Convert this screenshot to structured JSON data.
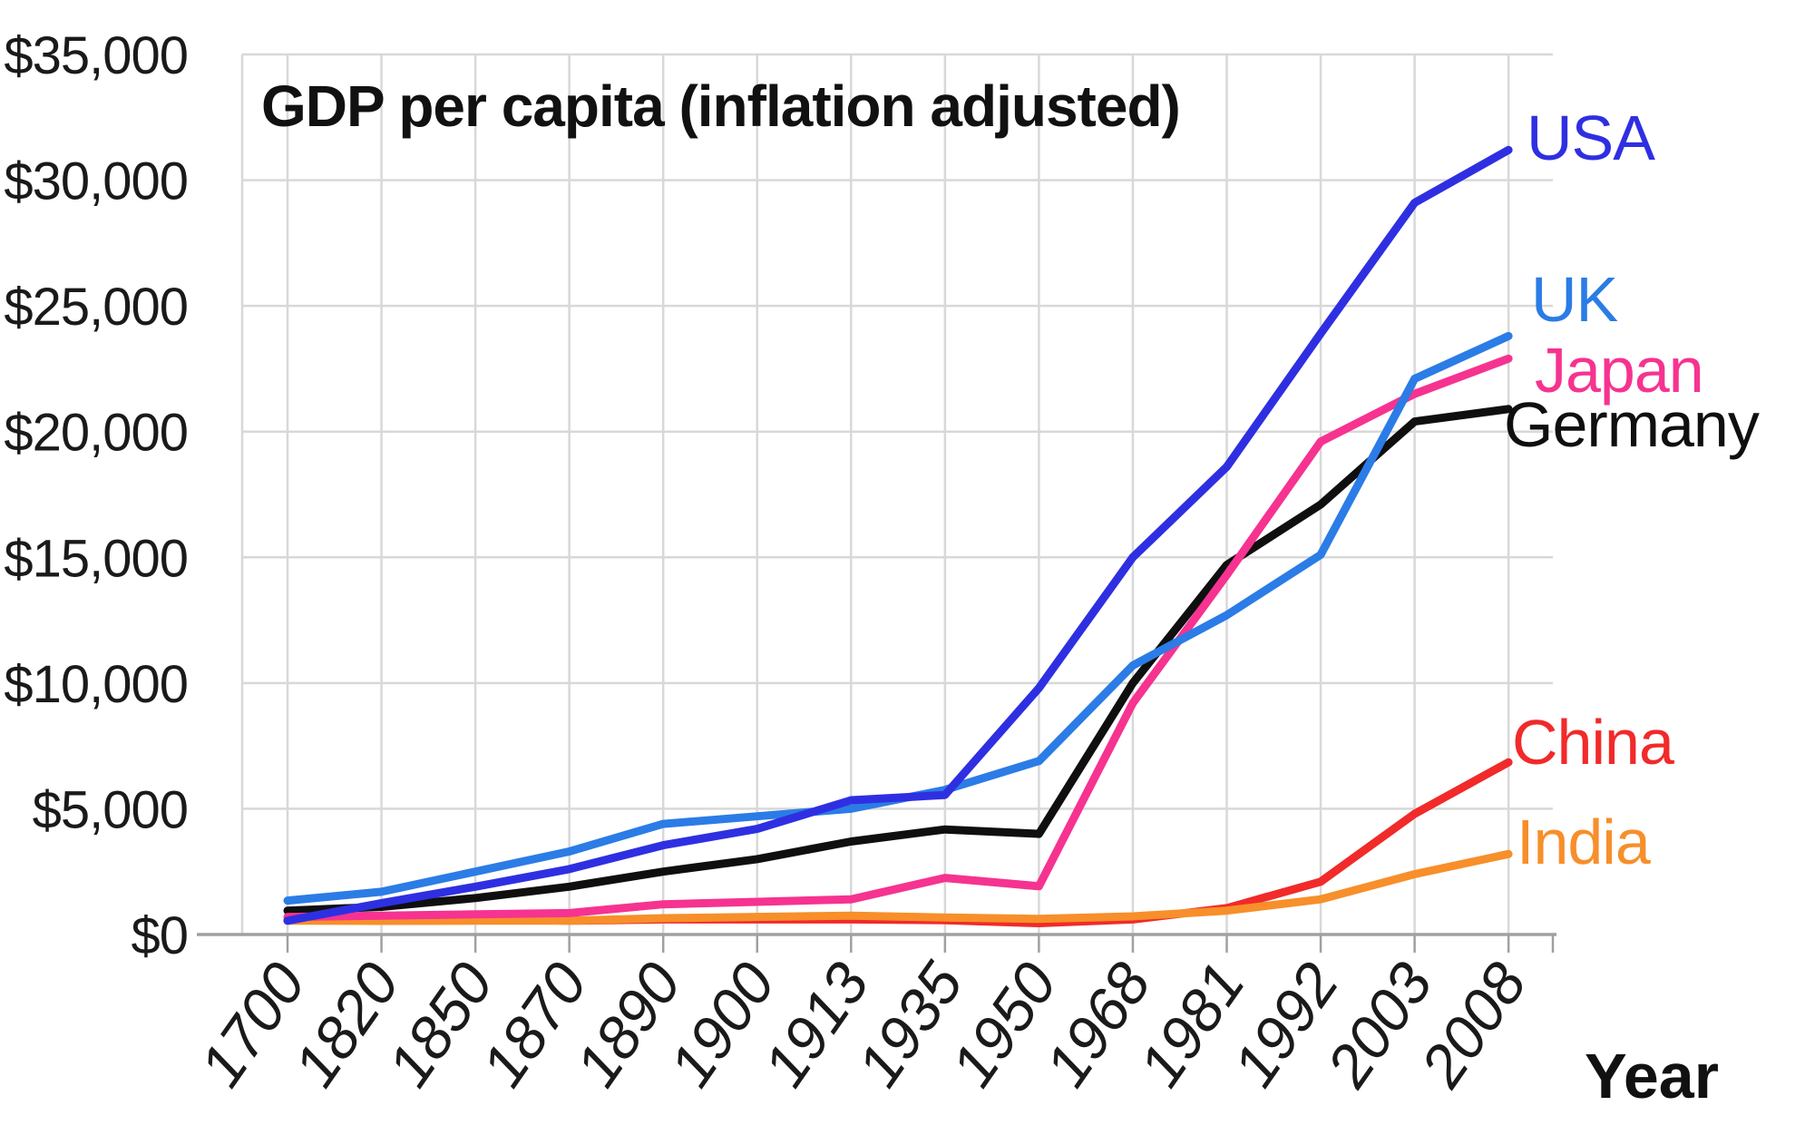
{
  "chart_data": {
    "type": "line",
    "title": "GDP per capita (inflation adjusted)",
    "xlabel": "Year",
    "ylabel": "",
    "categories": [
      "1700",
      "1820",
      "1850",
      "1870",
      "1890",
      "1900",
      "1913",
      "1935",
      "1950",
      "1968",
      "1981",
      "1992",
      "2003",
      "2008"
    ],
    "y_ticks": [
      "$0",
      "$5,000",
      "$10,000",
      "$15,000",
      "$20,000",
      "$25,000",
      "$30,000",
      "$35,000"
    ],
    "ylim": [
      0,
      35000
    ],
    "grid": true,
    "legend_position": "labels-at-line-ends-right",
    "colors": {
      "grid": "#d8d8d8",
      "axis": "#a0a0a0",
      "text": "#1a1a1a"
    },
    "series": [
      {
        "name": "China",
        "color": "#f12a2a",
        "values": [
          600,
          600,
          600,
          550,
          600,
          600,
          600,
          570,
          450,
          600,
          1050,
          2100,
          4800,
          6850
        ]
      },
      {
        "name": "India",
        "color": "#f78f2a",
        "values": [
          550,
          540,
          550,
          550,
          650,
          700,
          750,
          680,
          620,
          720,
          950,
          1400,
          2400,
          3200
        ]
      },
      {
        "name": "Germany",
        "color": "#0f0f0f",
        "values": [
          950,
          1100,
          1450,
          1900,
          2500,
          3000,
          3700,
          4180,
          4000,
          10000,
          14700,
          17100,
          20400,
          20900
        ]
      },
      {
        "name": "Japan",
        "color": "#f63390",
        "values": [
          700,
          750,
          800,
          850,
          1200,
          1300,
          1400,
          2250,
          1920,
          9200,
          14300,
          19600,
          21500,
          22900
        ]
      },
      {
        "name": "UK",
        "color": "#2b7ce6",
        "values": [
          1350,
          1700,
          2500,
          3300,
          4400,
          4700,
          5000,
          5750,
          6900,
          10700,
          12700,
          15100,
          22100,
          23800
        ]
      },
      {
        "name": "USA",
        "color": "#2f2fe2",
        "values": [
          550,
          1250,
          1900,
          2600,
          3550,
          4200,
          5340,
          5550,
          9800,
          15000,
          18600,
          23900,
          29100,
          31200
        ]
      }
    ]
  }
}
